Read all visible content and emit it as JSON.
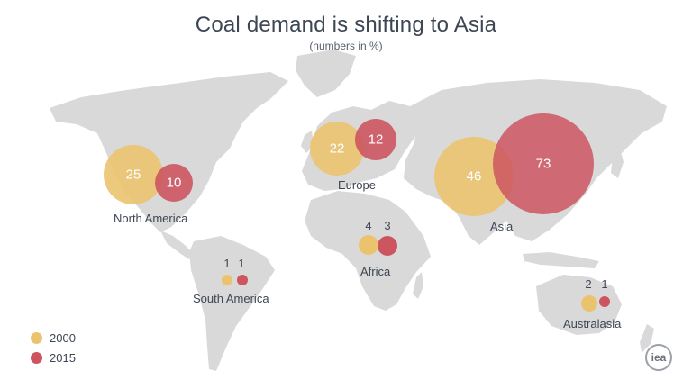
{
  "title": "Coal demand is shifting to Asia",
  "subtitle": "(numbers in %)",
  "colors": {
    "y2000": "#ebc36f",
    "y2015": "#cc5560",
    "land": "#d9d9d9"
  },
  "legend": [
    {
      "label": "2000",
      "color": "#ebc36f"
    },
    {
      "label": "2015",
      "color": "#cc5560"
    }
  ],
  "regions": [
    {
      "name": "North America",
      "v2000": 25,
      "v2015": 10
    },
    {
      "name": "Europe",
      "v2000": 22,
      "v2015": 12
    },
    {
      "name": "Asia",
      "v2000": 46,
      "v2015": 73
    },
    {
      "name": "Africa",
      "v2000": 4,
      "v2015": 3
    },
    {
      "name": "South America",
      "v2000": 1,
      "v2015": 1
    },
    {
      "name": "Australasia",
      "v2000": 2,
      "v2015": 1
    }
  ],
  "logo": "iea"
}
